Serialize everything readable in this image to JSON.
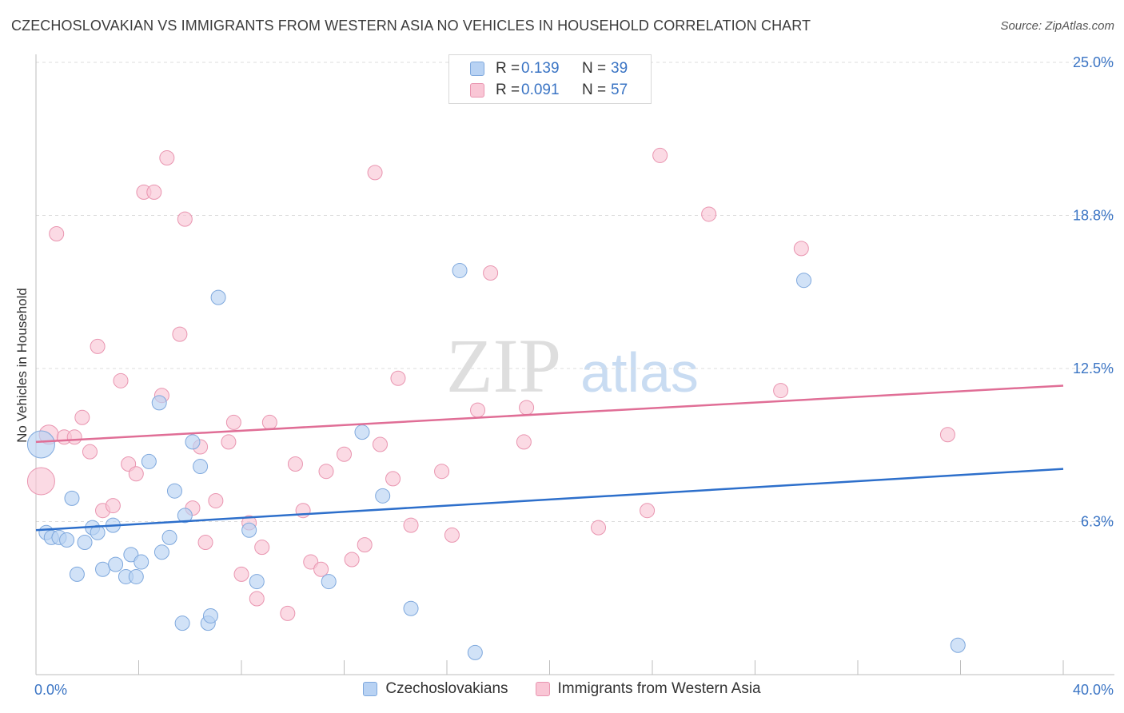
{
  "title": "CZECHOSLOVAKIAN VS IMMIGRANTS FROM WESTERN ASIA NO VEHICLES IN HOUSEHOLD CORRELATION CHART",
  "source": "Source: ZipAtlas.com",
  "watermark": {
    "zip": "ZIP",
    "atlas": "atlas"
  },
  "legend": {
    "rows": [
      {
        "r_label": "R =",
        "r_value": "0.139",
        "n_label": "N =",
        "n_value": "39"
      },
      {
        "r_label": "R =",
        "r_value": "0.091",
        "n_label": "N =",
        "n_value": "57"
      }
    ]
  },
  "chart_data": {
    "type": "scatter",
    "title": "CZECHOSLOVAKIAN VS IMMIGRANTS FROM WESTERN ASIA NO VEHICLES IN HOUSEHOLD CORRELATION CHART",
    "xlabel": "",
    "ylabel": "No Vehicles in Household",
    "xlim": [
      0,
      40
    ],
    "ylim": [
      0,
      25
    ],
    "x_tick_labels": [
      "0.0%",
      "40.0%"
    ],
    "y_ticks": [
      6.25,
      12.5,
      18.75,
      25
    ],
    "y_tick_labels": [
      "6.3%",
      "12.5%",
      "18.8%",
      "25.0%"
    ],
    "grid": "horizontal dashed",
    "legend_position": "top-center and bottom",
    "series": [
      {
        "name": "Czechoslovakians",
        "color": "#b8d2f3",
        "stroke": "#7ea8dd",
        "line_color": "#2d6fcb",
        "R": 0.139,
        "N": 39,
        "trend": {
          "x": [
            0,
            40
          ],
          "y": [
            5.9,
            8.4
          ]
        },
        "points": [
          {
            "x": 0.2,
            "y": 9.4,
            "size": "large"
          },
          {
            "x": 0.4,
            "y": 5.8
          },
          {
            "x": 0.6,
            "y": 5.6
          },
          {
            "x": 0.9,
            "y": 5.6
          },
          {
            "x": 1.2,
            "y": 5.5
          },
          {
            "x": 1.4,
            "y": 7.2
          },
          {
            "x": 1.6,
            "y": 4.1
          },
          {
            "x": 1.9,
            "y": 5.4
          },
          {
            "x": 2.2,
            "y": 6.0
          },
          {
            "x": 2.4,
            "y": 5.8
          },
          {
            "x": 2.6,
            "y": 4.3
          },
          {
            "x": 3.0,
            "y": 6.1
          },
          {
            "x": 3.1,
            "y": 4.5
          },
          {
            "x": 3.5,
            "y": 4.0
          },
          {
            "x": 3.7,
            "y": 4.9
          },
          {
            "x": 3.9,
            "y": 4.0
          },
          {
            "x": 4.1,
            "y": 4.6
          },
          {
            "x": 4.4,
            "y": 8.7
          },
          {
            "x": 4.8,
            "y": 11.1
          },
          {
            "x": 4.9,
            "y": 5.0
          },
          {
            "x": 5.2,
            "y": 5.6
          },
          {
            "x": 5.4,
            "y": 7.5
          },
          {
            "x": 5.7,
            "y": 2.1
          },
          {
            "x": 5.8,
            "y": 6.5
          },
          {
            "x": 6.1,
            "y": 9.5
          },
          {
            "x": 6.4,
            "y": 8.5
          },
          {
            "x": 6.7,
            "y": 2.1
          },
          {
            "x": 6.8,
            "y": 2.4
          },
          {
            "x": 7.1,
            "y": 15.4
          },
          {
            "x": 8.3,
            "y": 5.9
          },
          {
            "x": 8.6,
            "y": 3.8
          },
          {
            "x": 11.4,
            "y": 3.8
          },
          {
            "x": 12.7,
            "y": 9.9
          },
          {
            "x": 13.5,
            "y": 7.3
          },
          {
            "x": 14.6,
            "y": 2.7
          },
          {
            "x": 16.5,
            "y": 16.5
          },
          {
            "x": 17.1,
            "y": 0.9
          },
          {
            "x": 29.9,
            "y": 16.1
          },
          {
            "x": 35.9,
            "y": 1.2
          }
        ]
      },
      {
        "name": "Immigrants from Western Asia",
        "color": "#f9c6d5",
        "stroke": "#e995b0",
        "line_color": "#e06e96",
        "R": 0.091,
        "N": 57,
        "trend": {
          "x": [
            0,
            40
          ],
          "y": [
            9.5,
            11.8
          ]
        },
        "points": [
          {
            "x": 0.2,
            "y": 7.9,
            "size": "large"
          },
          {
            "x": 0.5,
            "y": 9.8,
            "size": "medium"
          },
          {
            "x": 0.8,
            "y": 18.0
          },
          {
            "x": 1.1,
            "y": 9.7
          },
          {
            "x": 1.5,
            "y": 9.7
          },
          {
            "x": 1.8,
            "y": 10.5
          },
          {
            "x": 2.1,
            "y": 9.1
          },
          {
            "x": 2.4,
            "y": 13.4
          },
          {
            "x": 2.6,
            "y": 6.7
          },
          {
            "x": 3.0,
            "y": 6.9
          },
          {
            "x": 3.3,
            "y": 12.0
          },
          {
            "x": 3.6,
            "y": 8.6
          },
          {
            "x": 3.9,
            "y": 8.2
          },
          {
            "x": 4.2,
            "y": 19.7
          },
          {
            "x": 4.6,
            "y": 19.7
          },
          {
            "x": 4.9,
            "y": 11.4
          },
          {
            "x": 5.1,
            "y": 21.1
          },
          {
            "x": 5.6,
            "y": 13.9
          },
          {
            "x": 5.8,
            "y": 18.6
          },
          {
            "x": 6.1,
            "y": 6.8
          },
          {
            "x": 6.4,
            "y": 9.3
          },
          {
            "x": 6.6,
            "y": 5.4
          },
          {
            "x": 7.0,
            "y": 7.1
          },
          {
            "x": 7.5,
            "y": 9.5
          },
          {
            "x": 7.7,
            "y": 10.3
          },
          {
            "x": 8.0,
            "y": 4.1
          },
          {
            "x": 8.3,
            "y": 6.2
          },
          {
            "x": 8.6,
            "y": 3.1
          },
          {
            "x": 8.8,
            "y": 5.2
          },
          {
            "x": 9.1,
            "y": 10.3
          },
          {
            "x": 9.8,
            "y": 2.5
          },
          {
            "x": 10.1,
            "y": 8.6
          },
          {
            "x": 10.4,
            "y": 6.7
          },
          {
            "x": 10.7,
            "y": 4.6
          },
          {
            "x": 11.1,
            "y": 4.3
          },
          {
            "x": 11.3,
            "y": 8.3
          },
          {
            "x": 12.0,
            "y": 9.0
          },
          {
            "x": 12.3,
            "y": 4.7
          },
          {
            "x": 12.8,
            "y": 5.3
          },
          {
            "x": 13.2,
            "y": 20.5
          },
          {
            "x": 13.4,
            "y": 9.4
          },
          {
            "x": 13.9,
            "y": 8.0
          },
          {
            "x": 14.1,
            "y": 12.1
          },
          {
            "x": 14.6,
            "y": 6.1
          },
          {
            "x": 15.8,
            "y": 8.3
          },
          {
            "x": 16.2,
            "y": 5.7
          },
          {
            "x": 17.2,
            "y": 10.8
          },
          {
            "x": 17.7,
            "y": 16.4
          },
          {
            "x": 19.0,
            "y": 9.5
          },
          {
            "x": 19.1,
            "y": 10.9
          },
          {
            "x": 21.9,
            "y": 6.0
          },
          {
            "x": 23.8,
            "y": 6.7
          },
          {
            "x": 24.3,
            "y": 21.2
          },
          {
            "x": 26.2,
            "y": 18.8
          },
          {
            "x": 29.0,
            "y": 11.6
          },
          {
            "x": 29.8,
            "y": 17.4
          },
          {
            "x": 35.5,
            "y": 9.8
          }
        ]
      }
    ]
  }
}
